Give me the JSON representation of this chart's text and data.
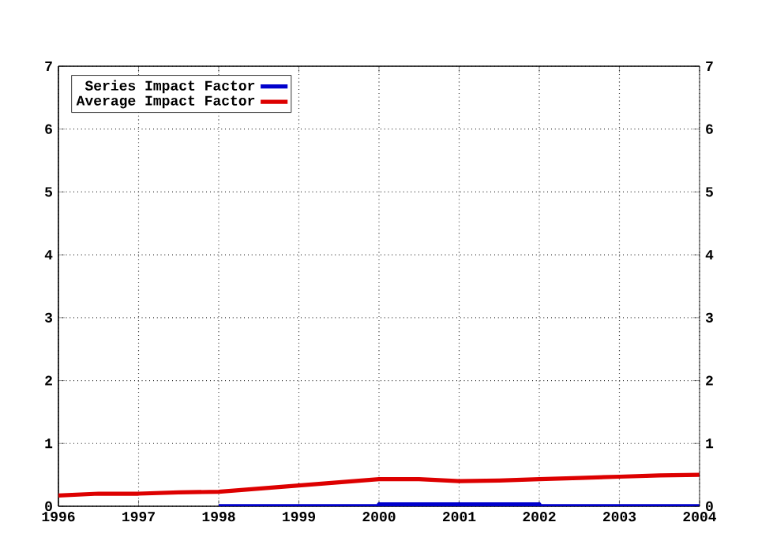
{
  "chart_data": {
    "type": "line",
    "series": [
      {
        "name": "Series Impact Factor",
        "color": "#0000cc",
        "x": [
          1998,
          2000,
          2000,
          2002,
          2002,
          2004
        ],
        "values": [
          0,
          0,
          0.03,
          0.03,
          0,
          0
        ]
      },
      {
        "name": "Average Impact Factor",
        "color": "#dd0000",
        "x": [
          1996,
          1996.5,
          1997,
          1997.5,
          1998,
          1998.5,
          1999,
          1999.5,
          2000,
          2000.5,
          2001,
          2001.5,
          2002,
          2002.5,
          2003,
          2003.5,
          2004
        ],
        "values": [
          0.17,
          0.2,
          0.2,
          0.22,
          0.23,
          0.28,
          0.33,
          0.38,
          0.43,
          0.43,
          0.4,
          0.41,
          0.43,
          0.45,
          0.47,
          0.49,
          0.5
        ]
      }
    ],
    "xlim": [
      1996,
      2004
    ],
    "xticks": [
      1996,
      1997,
      1998,
      1999,
      2000,
      2001,
      2002,
      2003,
      2004
    ],
    "ylim": [
      0,
      7
    ],
    "yticks": [
      0,
      1,
      2,
      3,
      4,
      5,
      6,
      7
    ],
    "y2lim": [
      0,
      7
    ],
    "y2ticks": [
      0,
      1,
      2,
      3,
      4,
      5,
      6,
      7
    ],
    "grid": true,
    "legend": "top left",
    "line_style": "solid",
    "marker": "none"
  }
}
